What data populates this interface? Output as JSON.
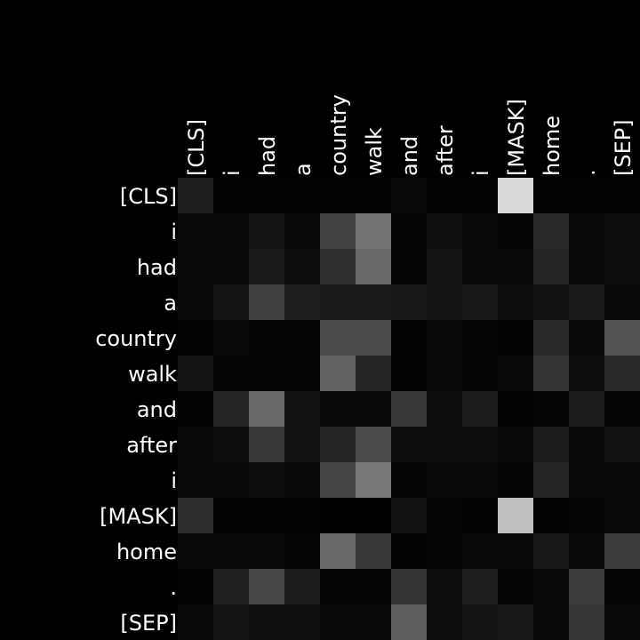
{
  "chart_data": {
    "type": "heatmap",
    "title": "",
    "xlabel": "",
    "ylabel": "",
    "colormap": "gray",
    "background": "#000000",
    "text_color": "#ffffff",
    "value_range": [
      0,
      1
    ],
    "x_labels": [
      "[CLS]",
      "i",
      "had",
      "a",
      "country",
      "walk",
      "and",
      "after",
      "i",
      "[MASK]",
      "home",
      ".",
      "[SEP]"
    ],
    "y_labels": [
      "[CLS]",
      "i",
      "had",
      "a",
      "country",
      "walk",
      "and",
      "after",
      "i",
      "[MASK]",
      "home",
      ".",
      "[SEP]"
    ],
    "values": [
      [
        0.12,
        0.01,
        0.01,
        0.01,
        0.01,
        0.01,
        0.03,
        0.01,
        0.01,
        0.85,
        0.01,
        0.01,
        0.01
      ],
      [
        0.03,
        0.04,
        0.08,
        0.04,
        0.26,
        0.45,
        0.02,
        0.06,
        0.03,
        0.02,
        0.16,
        0.04,
        0.05
      ],
      [
        0.03,
        0.04,
        0.1,
        0.05,
        0.19,
        0.41,
        0.02,
        0.08,
        0.04,
        0.03,
        0.14,
        0.03,
        0.05
      ],
      [
        0.03,
        0.08,
        0.25,
        0.12,
        0.1,
        0.1,
        0.09,
        0.08,
        0.09,
        0.05,
        0.07,
        0.1,
        0.04
      ],
      [
        0.01,
        0.03,
        0.02,
        0.02,
        0.29,
        0.29,
        0.01,
        0.03,
        0.02,
        0.01,
        0.16,
        0.03,
        0.33
      ],
      [
        0.08,
        0.02,
        0.02,
        0.02,
        0.39,
        0.14,
        0.01,
        0.03,
        0.02,
        0.04,
        0.2,
        0.05,
        0.16
      ],
      [
        0.01,
        0.14,
        0.41,
        0.07,
        0.03,
        0.03,
        0.22,
        0.05,
        0.11,
        0.01,
        0.02,
        0.11,
        0.02
      ],
      [
        0.03,
        0.05,
        0.22,
        0.07,
        0.14,
        0.29,
        0.05,
        0.05,
        0.05,
        0.03,
        0.11,
        0.04,
        0.07
      ],
      [
        0.03,
        0.03,
        0.05,
        0.03,
        0.27,
        0.47,
        0.02,
        0.04,
        0.03,
        0.02,
        0.14,
        0.03,
        0.04
      ],
      [
        0.18,
        0.01,
        0.01,
        0.01,
        0.0,
        0.0,
        0.07,
        0.02,
        0.01,
        0.75,
        0.01,
        0.02,
        0.03
      ],
      [
        0.04,
        0.03,
        0.03,
        0.02,
        0.41,
        0.22,
        0.01,
        0.02,
        0.03,
        0.03,
        0.09,
        0.03,
        0.23
      ],
      [
        0.01,
        0.13,
        0.28,
        0.11,
        0.02,
        0.02,
        0.2,
        0.05,
        0.12,
        0.02,
        0.03,
        0.24,
        0.02
      ],
      [
        0.03,
        0.08,
        0.06,
        0.06,
        0.03,
        0.03,
        0.37,
        0.05,
        0.08,
        0.09,
        0.03,
        0.21,
        0.04
      ]
    ]
  }
}
